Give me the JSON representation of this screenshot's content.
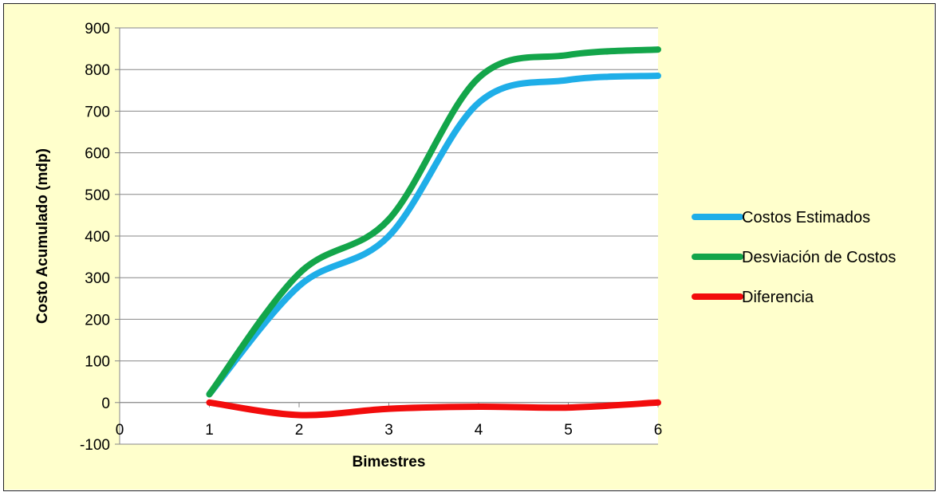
{
  "colors": {
    "background": "#FFFFCC",
    "plot_background": "#FFFFFF",
    "grid": "#878787",
    "axis": "#878787"
  },
  "chart_data": {
    "type": "line",
    "title": "",
    "xlabel": "Bimestres",
    "ylabel": "Costo Acumulado (mdp)",
    "xlim": [
      0,
      6
    ],
    "ylim": [
      -100,
      900
    ],
    "x_ticks": [
      0,
      1,
      2,
      3,
      4,
      5,
      6
    ],
    "y_ticks": [
      -100,
      0,
      100,
      200,
      300,
      400,
      500,
      600,
      700,
      800,
      900
    ],
    "x_tick_labels": [
      "0",
      "1",
      "2",
      "3",
      "4",
      "5",
      "6"
    ],
    "y_tick_labels": [
      "-100",
      "0",
      "100",
      "200",
      "300",
      "400",
      "500",
      "600",
      "700",
      "800",
      "900"
    ],
    "grid": "horizontal",
    "smooth": true,
    "legend_position": "right",
    "series": [
      {
        "name": "Costos Estimados",
        "color": "#1FAEE8",
        "x": [
          1,
          2,
          3,
          4,
          5,
          6
        ],
        "y": [
          20,
          280,
          400,
          720,
          775,
          785
        ]
      },
      {
        "name": "Desviación de Costos",
        "color": "#13A54A",
        "x": [
          1,
          2,
          3,
          4,
          5,
          6
        ],
        "y": [
          20,
          310,
          440,
          780,
          835,
          848
        ]
      },
      {
        "name": "Diferencia",
        "color": "#F20C0C",
        "x": [
          1,
          2,
          3,
          4,
          5,
          6
        ],
        "y": [
          0,
          -30,
          -15,
          -10,
          -12,
          0
        ]
      }
    ]
  }
}
